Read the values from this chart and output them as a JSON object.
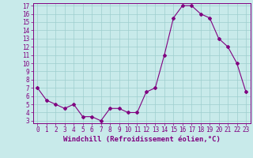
{
  "x": [
    0,
    1,
    2,
    3,
    4,
    5,
    6,
    7,
    8,
    9,
    10,
    11,
    12,
    13,
    14,
    15,
    16,
    17,
    18,
    19,
    20,
    21,
    22,
    23
  ],
  "y": [
    7,
    5.5,
    5,
    4.5,
    5,
    3.5,
    3.5,
    3,
    4.5,
    4.5,
    4,
    4,
    6.5,
    7,
    11,
    15.5,
    17,
    17,
    16,
    15.5,
    13,
    12,
    10,
    6.5
  ],
  "line_color": "#800080",
  "marker": "D",
  "marker_size": 2,
  "bg_color": "#c8eaea",
  "grid_color": "#9ecece",
  "ylim_min": 3,
  "ylim_max": 17,
  "yticks": [
    3,
    4,
    5,
    6,
    7,
    8,
    9,
    10,
    11,
    12,
    13,
    14,
    15,
    16,
    17
  ],
  "xlim_min": -0.5,
  "xlim_max": 23.5,
  "xticks": [
    0,
    1,
    2,
    3,
    4,
    5,
    6,
    7,
    8,
    9,
    10,
    11,
    12,
    13,
    14,
    15,
    16,
    17,
    18,
    19,
    20,
    21,
    22,
    23
  ],
  "xlabel": "Windchill (Refroidissement éolien,°C)",
  "xlabel_color": "#800080",
  "tick_color": "#800080",
  "axis_color": "#800080",
  "tick_fontsize": 5.5,
  "xlabel_fontsize": 6.5
}
